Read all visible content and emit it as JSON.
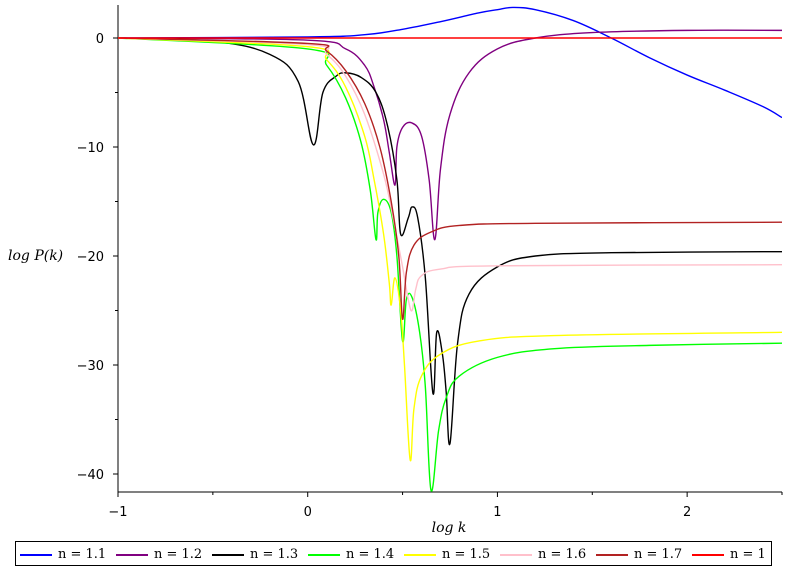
{
  "chart_data": {
    "type": "line",
    "xlabel": "log k",
    "ylabel": "log P(k)",
    "xlim": [
      -1,
      2.5
    ],
    "ylim": [
      -42,
      3
    ],
    "x_ticks": [
      "−1",
      "0",
      "1",
      "2"
    ],
    "y_ticks": [
      "0",
      "−10",
      "−20",
      "−30",
      "−40"
    ],
    "grid": false,
    "legend_position": "bottom",
    "series": [
      {
        "name": "n = 1.1",
        "color": "#0000ff",
        "points": [
          [
            -1,
            0
          ],
          [
            0,
            0.1
          ],
          [
            0.3,
            0.3
          ],
          [
            0.5,
            0.8
          ],
          [
            0.7,
            1.5
          ],
          [
            0.9,
            2.3
          ],
          [
            1.0,
            2.6
          ],
          [
            1.08,
            2.8
          ],
          [
            1.2,
            2.6
          ],
          [
            1.4,
            1.6
          ],
          [
            1.6,
            0
          ],
          [
            1.8,
            -1.8
          ],
          [
            2.0,
            -3.4
          ],
          [
            2.2,
            -4.8
          ],
          [
            2.4,
            -6.3
          ],
          [
            2.5,
            -7.3
          ]
        ]
      },
      {
        "name": "n = 1.2",
        "color": "#800080",
        "points": [
          [
            -1,
            0
          ],
          [
            0,
            -0.2
          ],
          [
            0.2,
            -1.0
          ],
          [
            0.3,
            -2.5
          ],
          [
            0.35,
            -4.5
          ],
          [
            0.4,
            -7.5
          ],
          [
            0.43,
            -10.5
          ],
          [
            0.46,
            -13.5
          ],
          [
            0.47,
            -10
          ],
          [
            0.5,
            -8.2
          ],
          [
            0.55,
            -7.8
          ],
          [
            0.6,
            -9
          ],
          [
            0.64,
            -13
          ],
          [
            0.67,
            -18.5
          ],
          [
            0.7,
            -12
          ],
          [
            0.75,
            -7
          ],
          [
            0.85,
            -3.2
          ],
          [
            1.0,
            -1
          ],
          [
            1.2,
            0
          ],
          [
            1.5,
            0.5
          ],
          [
            2.0,
            0.7
          ],
          [
            2.5,
            0.7
          ]
        ]
      },
      {
        "name": "n = 1.3",
        "color": "#000000",
        "points": [
          [
            -1,
            0
          ],
          [
            -0.5,
            -0.3
          ],
          [
            -0.2,
            -1.5
          ],
          [
            -0.05,
            -4
          ],
          [
            0.03,
            -9.8
          ],
          [
            0.08,
            -5
          ],
          [
            0.15,
            -3.5
          ],
          [
            0.2,
            -3.2
          ],
          [
            0.28,
            -3.6
          ],
          [
            0.36,
            -5
          ],
          [
            0.42,
            -8
          ],
          [
            0.47,
            -13
          ],
          [
            0.49,
            -18
          ],
          [
            0.53,
            -16.5
          ],
          [
            0.55,
            -15.5
          ],
          [
            0.58,
            -16.5
          ],
          [
            0.62,
            -22
          ],
          [
            0.66,
            -32.6
          ],
          [
            0.68,
            -27
          ],
          [
            0.71,
            -29
          ],
          [
            0.73,
            -32.5
          ],
          [
            0.75,
            -37.2
          ],
          [
            0.79,
            -28
          ],
          [
            0.85,
            -23.5
          ],
          [
            1.0,
            -21
          ],
          [
            1.2,
            -20
          ],
          [
            1.6,
            -19.7
          ],
          [
            2.5,
            -19.6
          ]
        ]
      },
      {
        "name": "n = 1.4",
        "color": "#00ff00",
        "points": [
          [
            -1,
            0
          ],
          [
            0,
            -1
          ],
          [
            0.1,
            -2.5
          ],
          [
            0.2,
            -5.5
          ],
          [
            0.28,
            -9.5
          ],
          [
            0.33,
            -14
          ],
          [
            0.36,
            -18.5
          ],
          [
            0.37,
            -16
          ],
          [
            0.4,
            -14.8
          ],
          [
            0.44,
            -16
          ],
          [
            0.47,
            -20
          ],
          [
            0.5,
            -27.8
          ],
          [
            0.52,
            -24
          ],
          [
            0.55,
            -23.8
          ],
          [
            0.59,
            -27
          ],
          [
            0.62,
            -32
          ],
          [
            0.65,
            -41.5
          ],
          [
            0.69,
            -36
          ],
          [
            0.73,
            -33
          ],
          [
            0.8,
            -31
          ],
          [
            1.0,
            -29.3
          ],
          [
            1.3,
            -28.5
          ],
          [
            1.8,
            -28.2
          ],
          [
            2.5,
            -28
          ]
        ]
      },
      {
        "name": "n = 1.5",
        "color": "#ffff00",
        "points": [
          [
            -1,
            0
          ],
          [
            0,
            -0.8
          ],
          [
            0.1,
            -2
          ],
          [
            0.2,
            -4.5
          ],
          [
            0.3,
            -9
          ],
          [
            0.35,
            -13
          ],
          [
            0.4,
            -18
          ],
          [
            0.43,
            -22.5
          ],
          [
            0.44,
            -24.5
          ],
          [
            0.46,
            -22
          ],
          [
            0.49,
            -25
          ],
          [
            0.51,
            -30
          ],
          [
            0.54,
            -38.7
          ],
          [
            0.56,
            -34
          ],
          [
            0.6,
            -31
          ],
          [
            0.7,
            -29
          ],
          [
            0.9,
            -27.8
          ],
          [
            1.3,
            -27.3
          ],
          [
            2.5,
            -27
          ]
        ]
      },
      {
        "name": "n = 1.6",
        "color": "#ffc0cb",
        "points": [
          [
            -1,
            0
          ],
          [
            0,
            -0.6
          ],
          [
            0.1,
            -1.5
          ],
          [
            0.2,
            -3.5
          ],
          [
            0.3,
            -7
          ],
          [
            0.4,
            -12.5
          ],
          [
            0.45,
            -16.5
          ],
          [
            0.5,
            -21
          ],
          [
            0.53,
            -24
          ],
          [
            0.55,
            -25
          ],
          [
            0.57,
            -23
          ],
          [
            0.6,
            -21.8
          ],
          [
            0.7,
            -21.2
          ],
          [
            1.0,
            -20.9
          ],
          [
            2.5,
            -20.8
          ]
        ]
      },
      {
        "name": "n = 1.7",
        "color": "#b22222",
        "points": [
          [
            -1,
            0
          ],
          [
            0,
            -0.5
          ],
          [
            0.1,
            -1.2
          ],
          [
            0.2,
            -3
          ],
          [
            0.3,
            -6
          ],
          [
            0.38,
            -10
          ],
          [
            0.44,
            -15
          ],
          [
            0.48,
            -20
          ],
          [
            0.5,
            -25.8
          ],
          [
            0.52,
            -21.5
          ],
          [
            0.56,
            -19
          ],
          [
            0.65,
            -17.8
          ],
          [
            0.8,
            -17.2
          ],
          [
            1.2,
            -17
          ],
          [
            2.5,
            -16.9
          ]
        ]
      },
      {
        "name": "n = 1",
        "color": "#ff0000",
        "points": [
          [
            -1,
            0
          ],
          [
            2.5,
            0
          ]
        ]
      }
    ]
  }
}
